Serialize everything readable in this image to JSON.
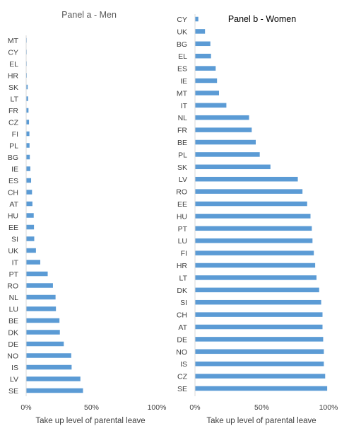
{
  "chart_data": [
    {
      "type": "bar",
      "orientation": "horizontal",
      "title": "Panel a - Men",
      "xlabel": "Take up level of parental leave",
      "ylabel": "",
      "xlim": [
        0,
        1
      ],
      "x_ticks": [
        "0%",
        "50%",
        "100%"
      ],
      "grid": false,
      "color": "#5b9bd5",
      "categories": [
        "MT",
        "CY",
        "EL",
        "HR",
        "SK",
        "LT",
        "FR",
        "CZ",
        "FI",
        "PL",
        "BG",
        "IE",
        "ES",
        "CH",
        "AT",
        "HU",
        "EE",
        "SI",
        "UK",
        "IT",
        "PT",
        "RO",
        "NL",
        "LU",
        "BE",
        "DK",
        "DE",
        "NO",
        "IS",
        "LV",
        "SE"
      ],
      "values": [
        0.002,
        0.003,
        0.004,
        0.005,
        0.012,
        0.015,
        0.018,
        0.022,
        0.025,
        0.026,
        0.028,
        0.032,
        0.038,
        0.045,
        0.048,
        0.058,
        0.06,
        0.062,
        0.075,
        0.108,
        0.165,
        0.205,
        0.225,
        0.228,
        0.255,
        0.258,
        0.288,
        0.345,
        0.348,
        0.415,
        0.435
      ]
    },
    {
      "type": "bar",
      "orientation": "horizontal",
      "title": "Panel b - Women",
      "xlabel": "Take up level of parental leave",
      "ylabel": "",
      "xlim": [
        0,
        1
      ],
      "x_ticks": [
        "0%",
        "50%",
        "100%"
      ],
      "grid": false,
      "color": "#5b9bd5",
      "categories": [
        "CY",
        "UK",
        "BG",
        "EL",
        "ES",
        "IE",
        "MT",
        "IT",
        "NL",
        "FR",
        "BE",
        "PL",
        "SK",
        "LV",
        "RO",
        "EE",
        "HU",
        "PT",
        "LU",
        "FI",
        "HR",
        "LT",
        "DK",
        "SI",
        "CH",
        "AT",
        "DE",
        "NO",
        "IS",
        "CZ",
        "SE"
      ],
      "values": [
        0.025,
        0.075,
        0.115,
        0.12,
        0.155,
        0.165,
        0.18,
        0.235,
        0.405,
        0.425,
        0.455,
        0.485,
        0.565,
        0.77,
        0.805,
        0.84,
        0.865,
        0.875,
        0.88,
        0.89,
        0.9,
        0.91,
        0.93,
        0.945,
        0.955,
        0.955,
        0.96,
        0.965,
        0.965,
        0.975,
        0.99
      ]
    }
  ]
}
